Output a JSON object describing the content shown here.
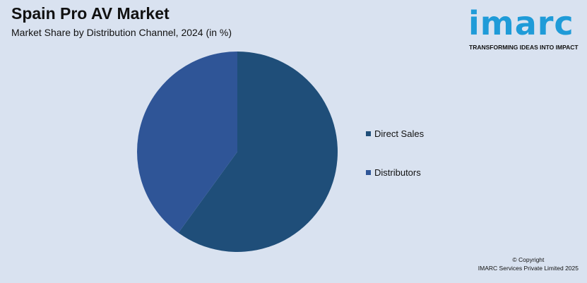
{
  "header": {
    "title": "Spain Pro AV Market",
    "subtitle": "Market Share by Distribution Channel, 2024 (in %)"
  },
  "logo": {
    "word": "imarc",
    "tagline": "TRANSFORMING IDEAS INTO IMPACT",
    "color": "#1f9bd8"
  },
  "chart_data": {
    "type": "pie",
    "categories": [
      "Direct Sales",
      "Distributors"
    ],
    "values": [
      60,
      40
    ],
    "colors": [
      "#1f4e79",
      "#2f5597"
    ],
    "legend_position": "right"
  },
  "footer": {
    "copyright_line1": "© Copyright",
    "copyright_line2": "IMARC Services Private Limited 2025"
  }
}
